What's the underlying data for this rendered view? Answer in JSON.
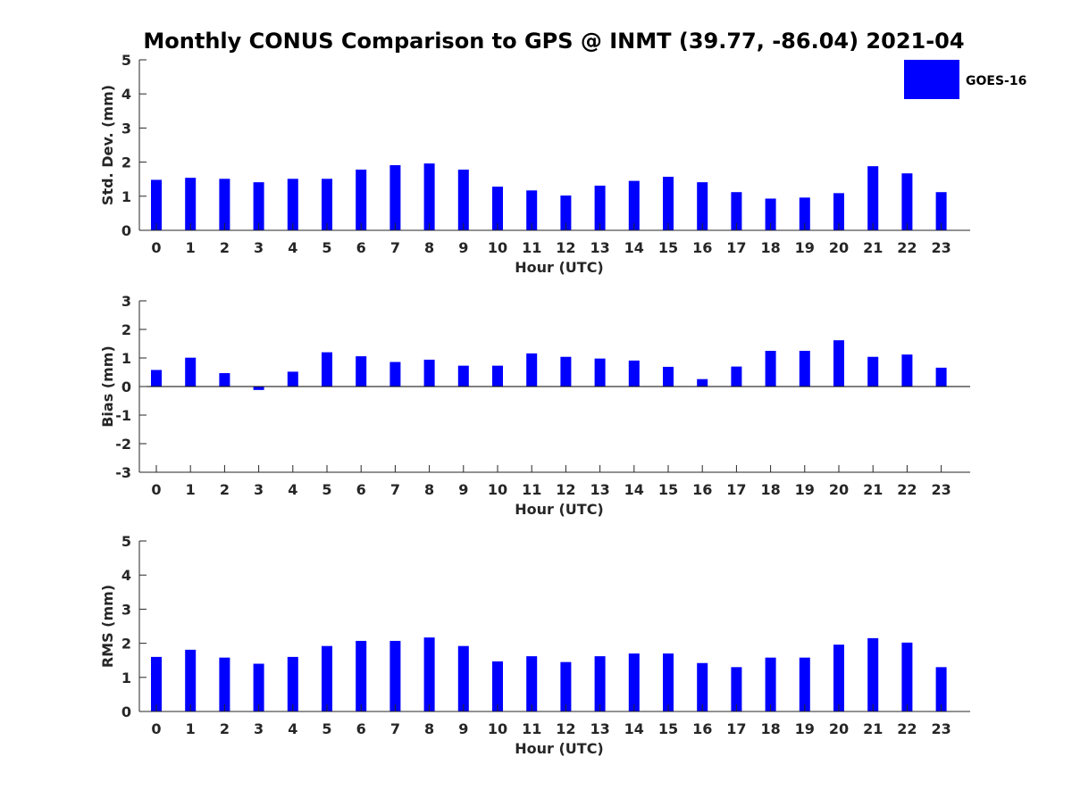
{
  "title": "Monthly CONUS Comparison to GPS @ INMT (39.77, -86.04) 2021-04",
  "legend": {
    "label": "GOES-16",
    "color": "#0000ff"
  },
  "chart_data": [
    {
      "type": "bar",
      "xlabel": "Hour (UTC)",
      "ylabel": "Std. Dev. (mm)",
      "ylim": [
        0,
        5
      ],
      "yticks": [
        0,
        1,
        2,
        3,
        4,
        5
      ],
      "categories": [
        "0",
        "1",
        "2",
        "3",
        "4",
        "5",
        "6",
        "7",
        "8",
        "9",
        "10",
        "11",
        "12",
        "13",
        "14",
        "15",
        "16",
        "17",
        "18",
        "19",
        "20",
        "21",
        "22",
        "23"
      ],
      "series": [
        {
          "name": "GOES-16",
          "values": [
            1.48,
            1.54,
            1.51,
            1.41,
            1.51,
            1.51,
            1.78,
            1.91,
            1.96,
            1.78,
            1.28,
            1.17,
            1.02,
            1.31,
            1.45,
            1.57,
            1.41,
            1.12,
            0.93,
            0.96,
            1.09,
            1.88,
            1.67,
            1.12
          ]
        }
      ]
    },
    {
      "type": "bar",
      "xlabel": "Hour (UTC)",
      "ylabel": "Bias (mm)",
      "ylim": [
        -3,
        3
      ],
      "yticks": [
        -3,
        -2,
        -1,
        0,
        1,
        2,
        3
      ],
      "categories": [
        "0",
        "1",
        "2",
        "3",
        "4",
        "5",
        "6",
        "7",
        "8",
        "9",
        "10",
        "11",
        "12",
        "13",
        "14",
        "15",
        "16",
        "17",
        "18",
        "19",
        "20",
        "21",
        "22",
        "23"
      ],
      "series": [
        {
          "name": "GOES-16",
          "values": [
            0.58,
            1.01,
            0.47,
            -0.12,
            0.52,
            1.2,
            1.06,
            0.86,
            0.94,
            0.73,
            0.73,
            1.16,
            1.04,
            0.98,
            0.91,
            0.69,
            0.26,
            0.7,
            1.25,
            1.25,
            1.62,
            1.04,
            1.12,
            0.66
          ]
        }
      ]
    },
    {
      "type": "bar",
      "xlabel": "Hour (UTC)",
      "ylabel": "RMS (mm)",
      "ylim": [
        0,
        5
      ],
      "yticks": [
        0,
        1,
        2,
        3,
        4,
        5
      ],
      "categories": [
        "0",
        "1",
        "2",
        "3",
        "4",
        "5",
        "6",
        "7",
        "8",
        "9",
        "10",
        "11",
        "12",
        "13",
        "14",
        "15",
        "16",
        "17",
        "18",
        "19",
        "20",
        "21",
        "22",
        "23"
      ],
      "series": [
        {
          "name": "GOES-16",
          "values": [
            1.6,
            1.81,
            1.58,
            1.4,
            1.6,
            1.92,
            2.07,
            2.07,
            2.17,
            1.92,
            1.47,
            1.62,
            1.45,
            1.62,
            1.7,
            1.7,
            1.42,
            1.3,
            1.58,
            1.58,
            1.96,
            2.15,
            2.02,
            1.3
          ]
        }
      ]
    }
  ]
}
